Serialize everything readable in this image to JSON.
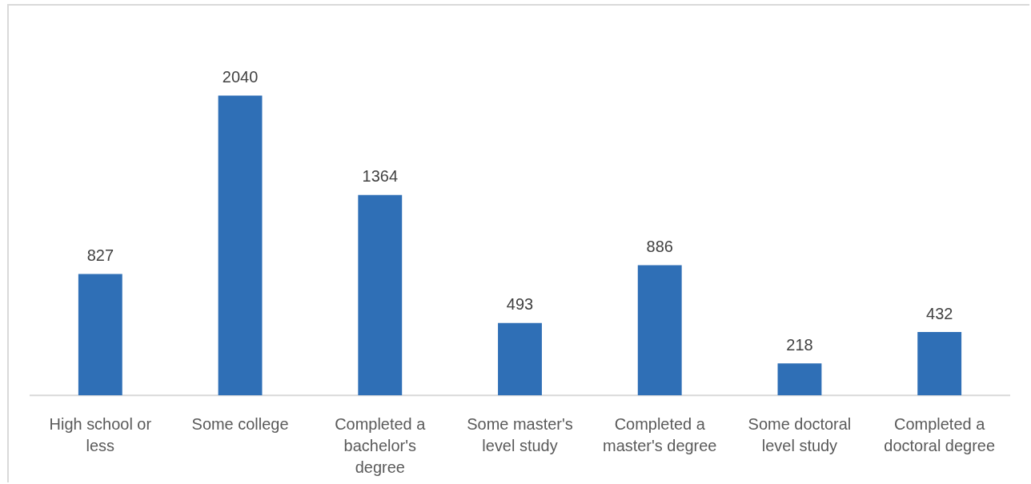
{
  "chart_data": {
    "type": "bar",
    "categories": [
      "High school or less",
      "Some college",
      "Completed a bachelor's degree",
      "Some master's level study",
      "Completed a master's degree",
      "Some doctoral level study",
      "Completed a doctoral degree"
    ],
    "values": [
      827,
      2040,
      1364,
      493,
      886,
      218,
      432
    ],
    "color": "#2f6fb6",
    "data_labels": true,
    "tick_labels": "x",
    "grid": false,
    "legend": false
  }
}
